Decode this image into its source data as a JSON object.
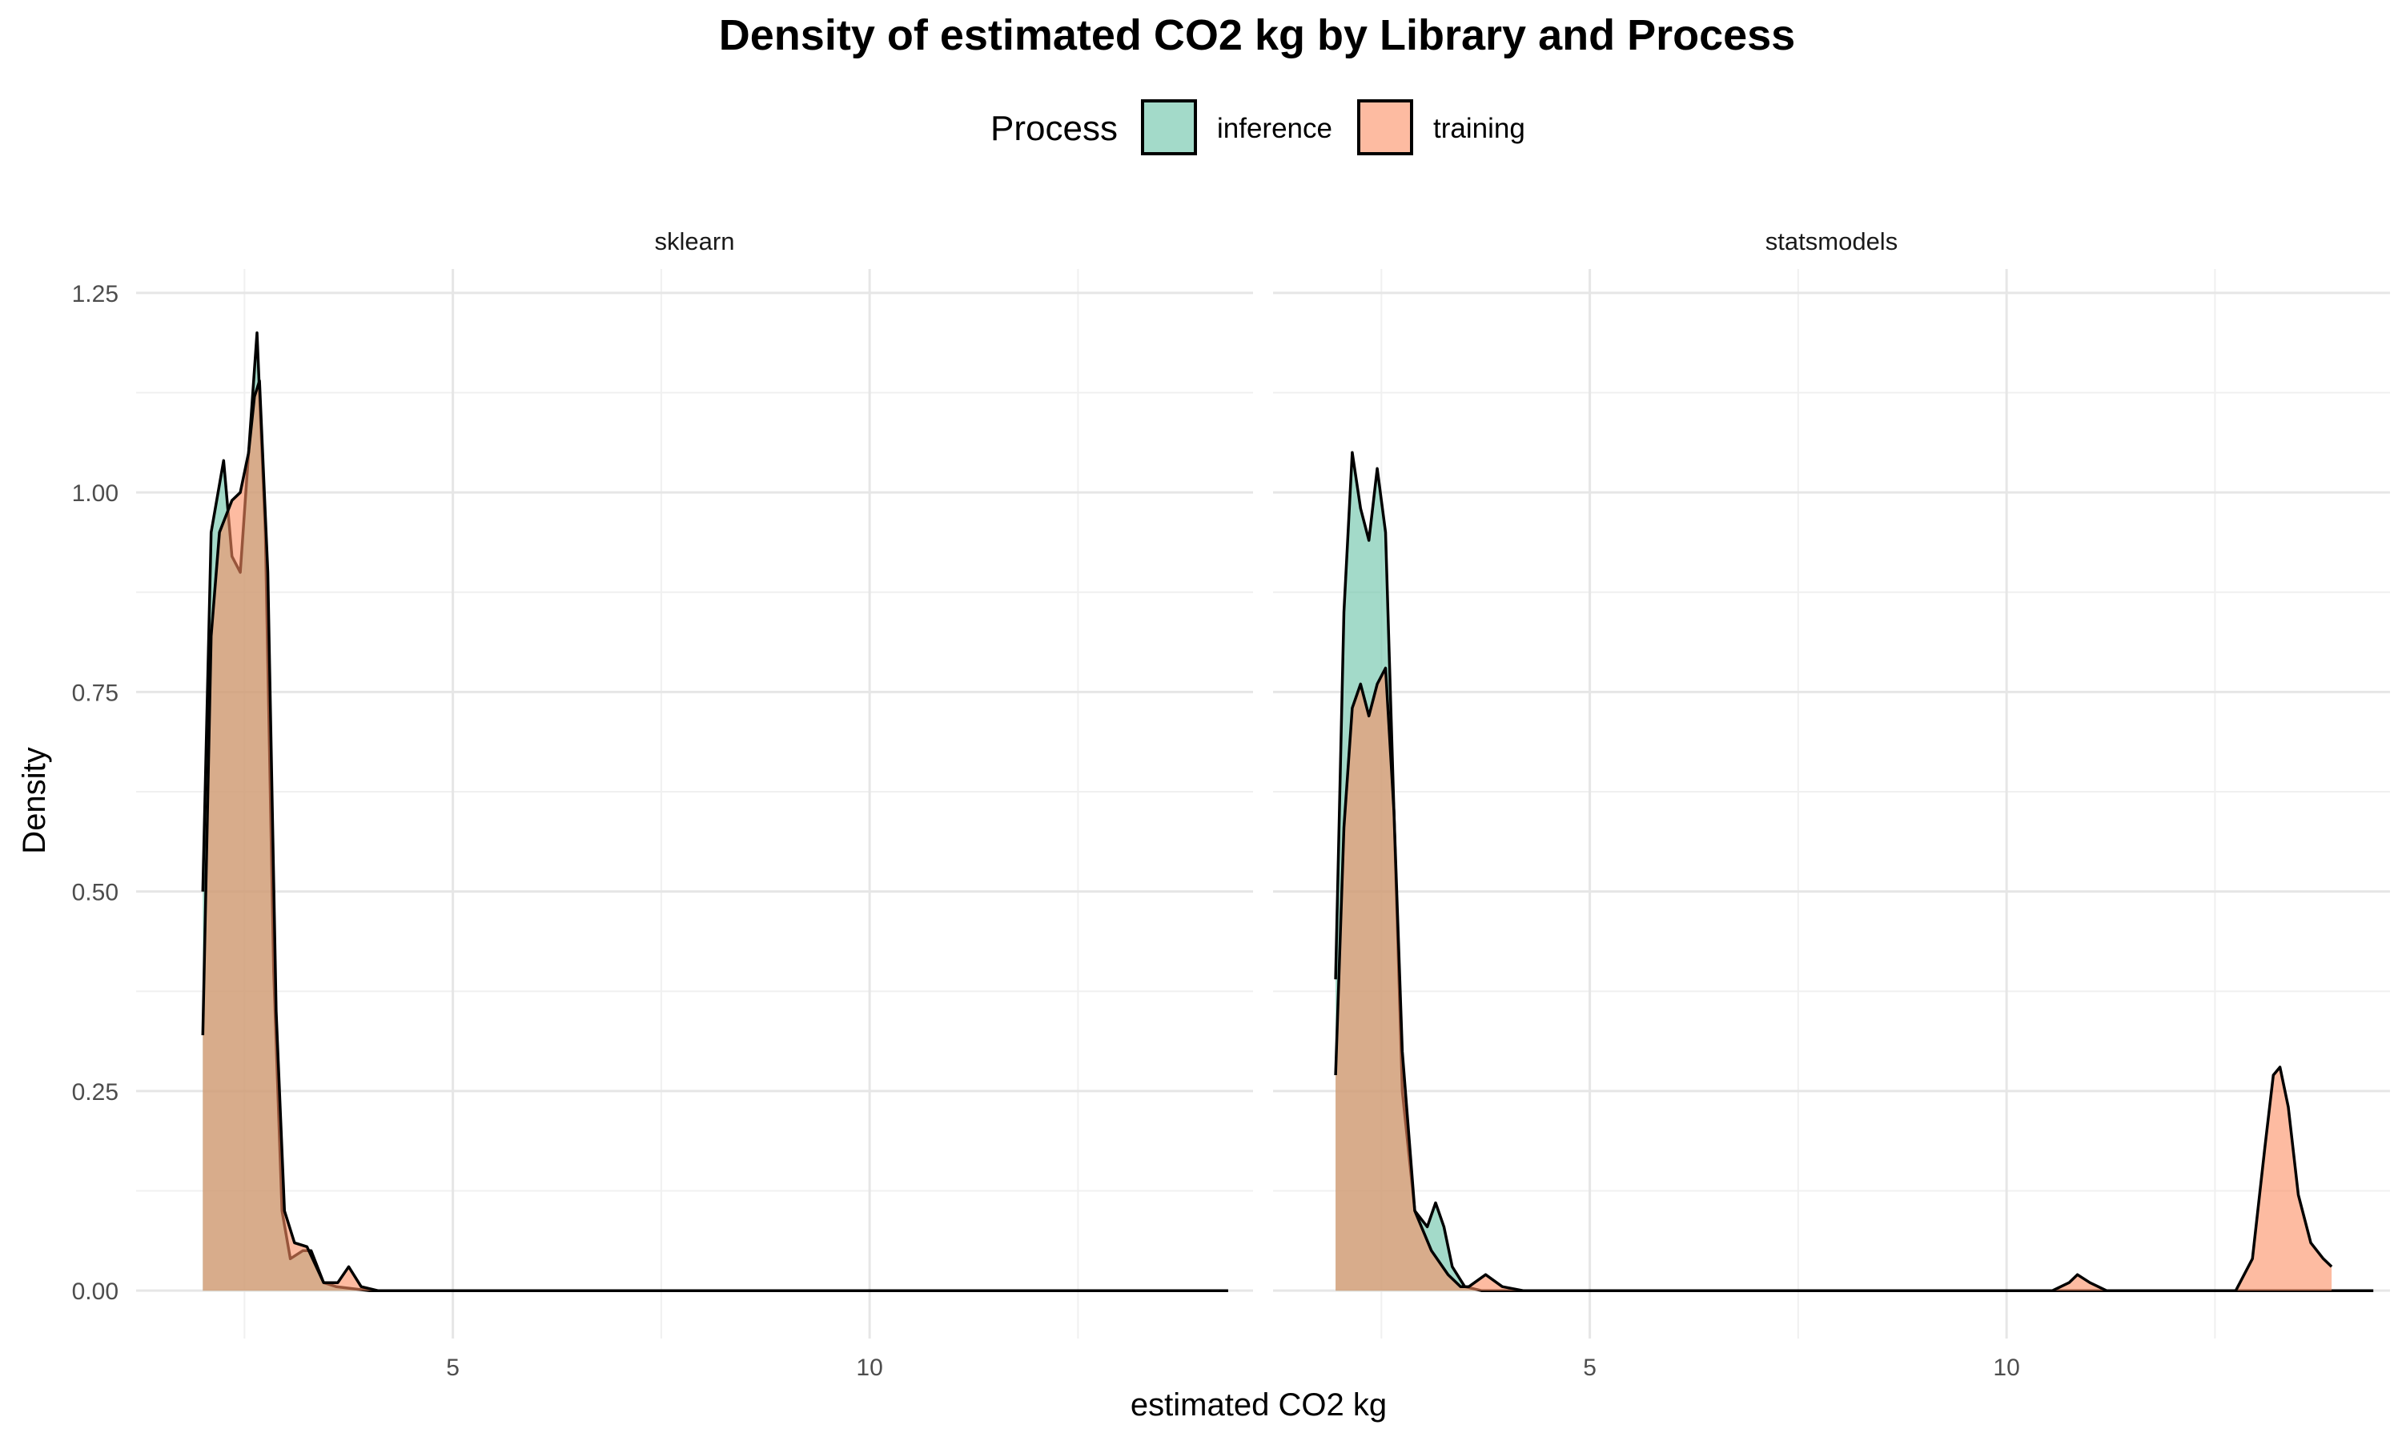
{
  "chart_data": {
    "type": "area",
    "title": "Density of estimated CO2 kg by Library and Process",
    "xlabel": "estimated CO2 kg",
    "ylabel": "Density",
    "legend": {
      "title": "Process",
      "position": "top",
      "entries": [
        {
          "name": "inference",
          "color": "#66C2A5"
        },
        {
          "name": "training",
          "color": "#FC8D62"
        }
      ]
    },
    "grid": true,
    "xlim": [
      1.2,
      14.6
    ],
    "ylim": [
      -0.06,
      1.28
    ],
    "x_ticks": [
      5,
      10
    ],
    "x_tick_labels": [
      "5",
      "10"
    ],
    "y_ticks": [
      0,
      0.25,
      0.5,
      0.75,
      1.0,
      1.25
    ],
    "y_tick_labels": [
      "0.00",
      "0.25",
      "0.50",
      "0.75",
      "1.00",
      "1.25"
    ],
    "panels": [
      {
        "label": "sklearn",
        "series": [
          {
            "name": "inference",
            "points": [
              [
                2.0,
                0.5
              ],
              [
                2.1,
                0.95
              ],
              [
                2.25,
                1.04
              ],
              [
                2.35,
                0.92
              ],
              [
                2.45,
                0.9
              ],
              [
                2.55,
                1.05
              ],
              [
                2.65,
                1.2
              ],
              [
                2.75,
                0.95
              ],
              [
                2.85,
                0.4
              ],
              [
                2.95,
                0.1
              ],
              [
                3.05,
                0.04
              ],
              [
                3.2,
                0.05
              ],
              [
                3.3,
                0.05
              ],
              [
                3.45,
                0.01
              ],
              [
                3.6,
                0.005
              ],
              [
                4.0,
                0.0
              ],
              [
                14.3,
                0.0
              ]
            ]
          },
          {
            "name": "training",
            "points": [
              [
                2.0,
                0.32
              ],
              [
                2.1,
                0.82
              ],
              [
                2.2,
                0.95
              ],
              [
                2.35,
                0.99
              ],
              [
                2.45,
                1.0
              ],
              [
                2.55,
                1.05
              ],
              [
                2.62,
                1.12
              ],
              [
                2.68,
                1.14
              ],
              [
                2.78,
                0.9
              ],
              [
                2.88,
                0.35
              ],
              [
                2.98,
                0.1
              ],
              [
                3.1,
                0.06
              ],
              [
                3.25,
                0.055
              ],
              [
                3.45,
                0.01
              ],
              [
                3.62,
                0.01
              ],
              [
                3.75,
                0.03
              ],
              [
                3.9,
                0.005
              ],
              [
                4.1,
                0.0
              ],
              [
                14.3,
                0.0
              ]
            ]
          }
        ]
      },
      {
        "label": "statsmodels",
        "series": [
          {
            "name": "inference",
            "points": [
              [
                1.95,
                0.39
              ],
              [
                2.05,
                0.85
              ],
              [
                2.15,
                1.05
              ],
              [
                2.25,
                0.98
              ],
              [
                2.35,
                0.94
              ],
              [
                2.45,
                1.03
              ],
              [
                2.55,
                0.95
              ],
              [
                2.65,
                0.6
              ],
              [
                2.75,
                0.25
              ],
              [
                2.9,
                0.1
              ],
              [
                3.05,
                0.08
              ],
              [
                3.15,
                0.11
              ],
              [
                3.25,
                0.08
              ],
              [
                3.35,
                0.03
              ],
              [
                3.5,
                0.005
              ],
              [
                3.7,
                0.0
              ],
              [
                14.4,
                0.0
              ]
            ]
          },
          {
            "name": "training",
            "points": [
              [
                1.95,
                0.27
              ],
              [
                2.05,
                0.58
              ],
              [
                2.15,
                0.73
              ],
              [
                2.25,
                0.76
              ],
              [
                2.35,
                0.72
              ],
              [
                2.45,
                0.76
              ],
              [
                2.55,
                0.78
              ],
              [
                2.65,
                0.6
              ],
              [
                2.75,
                0.3
              ],
              [
                2.9,
                0.1
              ],
              [
                3.1,
                0.05
              ],
              [
                3.3,
                0.02
              ],
              [
                3.45,
                0.005
              ],
              [
                3.55,
                0.005
              ],
              [
                3.75,
                0.02
              ],
              [
                3.95,
                0.005
              ],
              [
                4.2,
                0.0
              ],
              [
                10.55,
                0.0
              ],
              [
                10.75,
                0.01
              ],
              [
                10.85,
                0.02
              ],
              [
                11.0,
                0.01
              ],
              [
                11.2,
                0.0
              ],
              [
                12.75,
                0.0
              ],
              [
                12.95,
                0.04
              ],
              [
                13.1,
                0.18
              ],
              [
                13.2,
                0.27
              ],
              [
                13.28,
                0.28
              ],
              [
                13.38,
                0.23
              ],
              [
                13.5,
                0.12
              ],
              [
                13.65,
                0.06
              ],
              [
                13.8,
                0.04
              ],
              [
                13.9,
                0.03
              ]
            ]
          }
        ]
      }
    ]
  }
}
